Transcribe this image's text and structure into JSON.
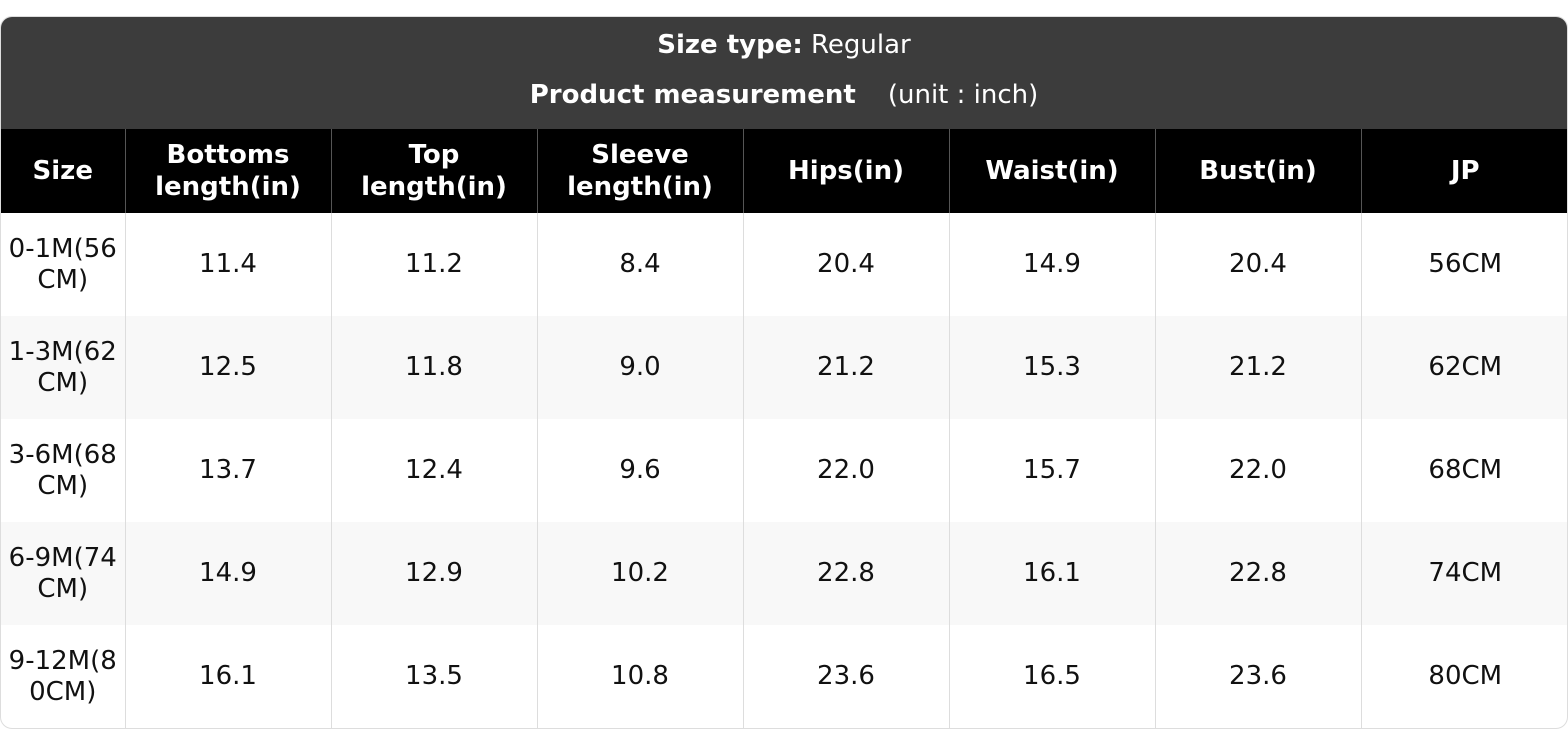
{
  "header": {
    "size_type_label": "Size type:",
    "size_type": "Regular",
    "title": "Product measurement",
    "unit": "(unit : inch)"
  },
  "table": {
    "columns": [
      "Size",
      "Bottoms length(in)",
      "Top length(in)",
      "Sleeve length(in)",
      "Hips(in)",
      "Waist(in)",
      "Bust(in)",
      "JP"
    ],
    "rows": [
      [
        "0-1M(56CM)",
        "11.4",
        "11.2",
        "8.4",
        "20.4",
        "14.9",
        "20.4",
        "56CM"
      ],
      [
        "1-3M(62CM)",
        "12.5",
        "11.8",
        "9.0",
        "21.2",
        "15.3",
        "21.2",
        "62CM"
      ],
      [
        "3-6M(68CM)",
        "13.7",
        "12.4",
        "9.6",
        "22.0",
        "15.7",
        "22.0",
        "68CM"
      ],
      [
        "6-9M(74CM)",
        "14.9",
        "12.9",
        "10.2",
        "22.8",
        "16.1",
        "22.8",
        "74CM"
      ],
      [
        "9-12M(80CM)",
        "16.1",
        "13.5",
        "10.8",
        "23.6",
        "16.5",
        "23.6",
        "80CM"
      ]
    ]
  }
}
